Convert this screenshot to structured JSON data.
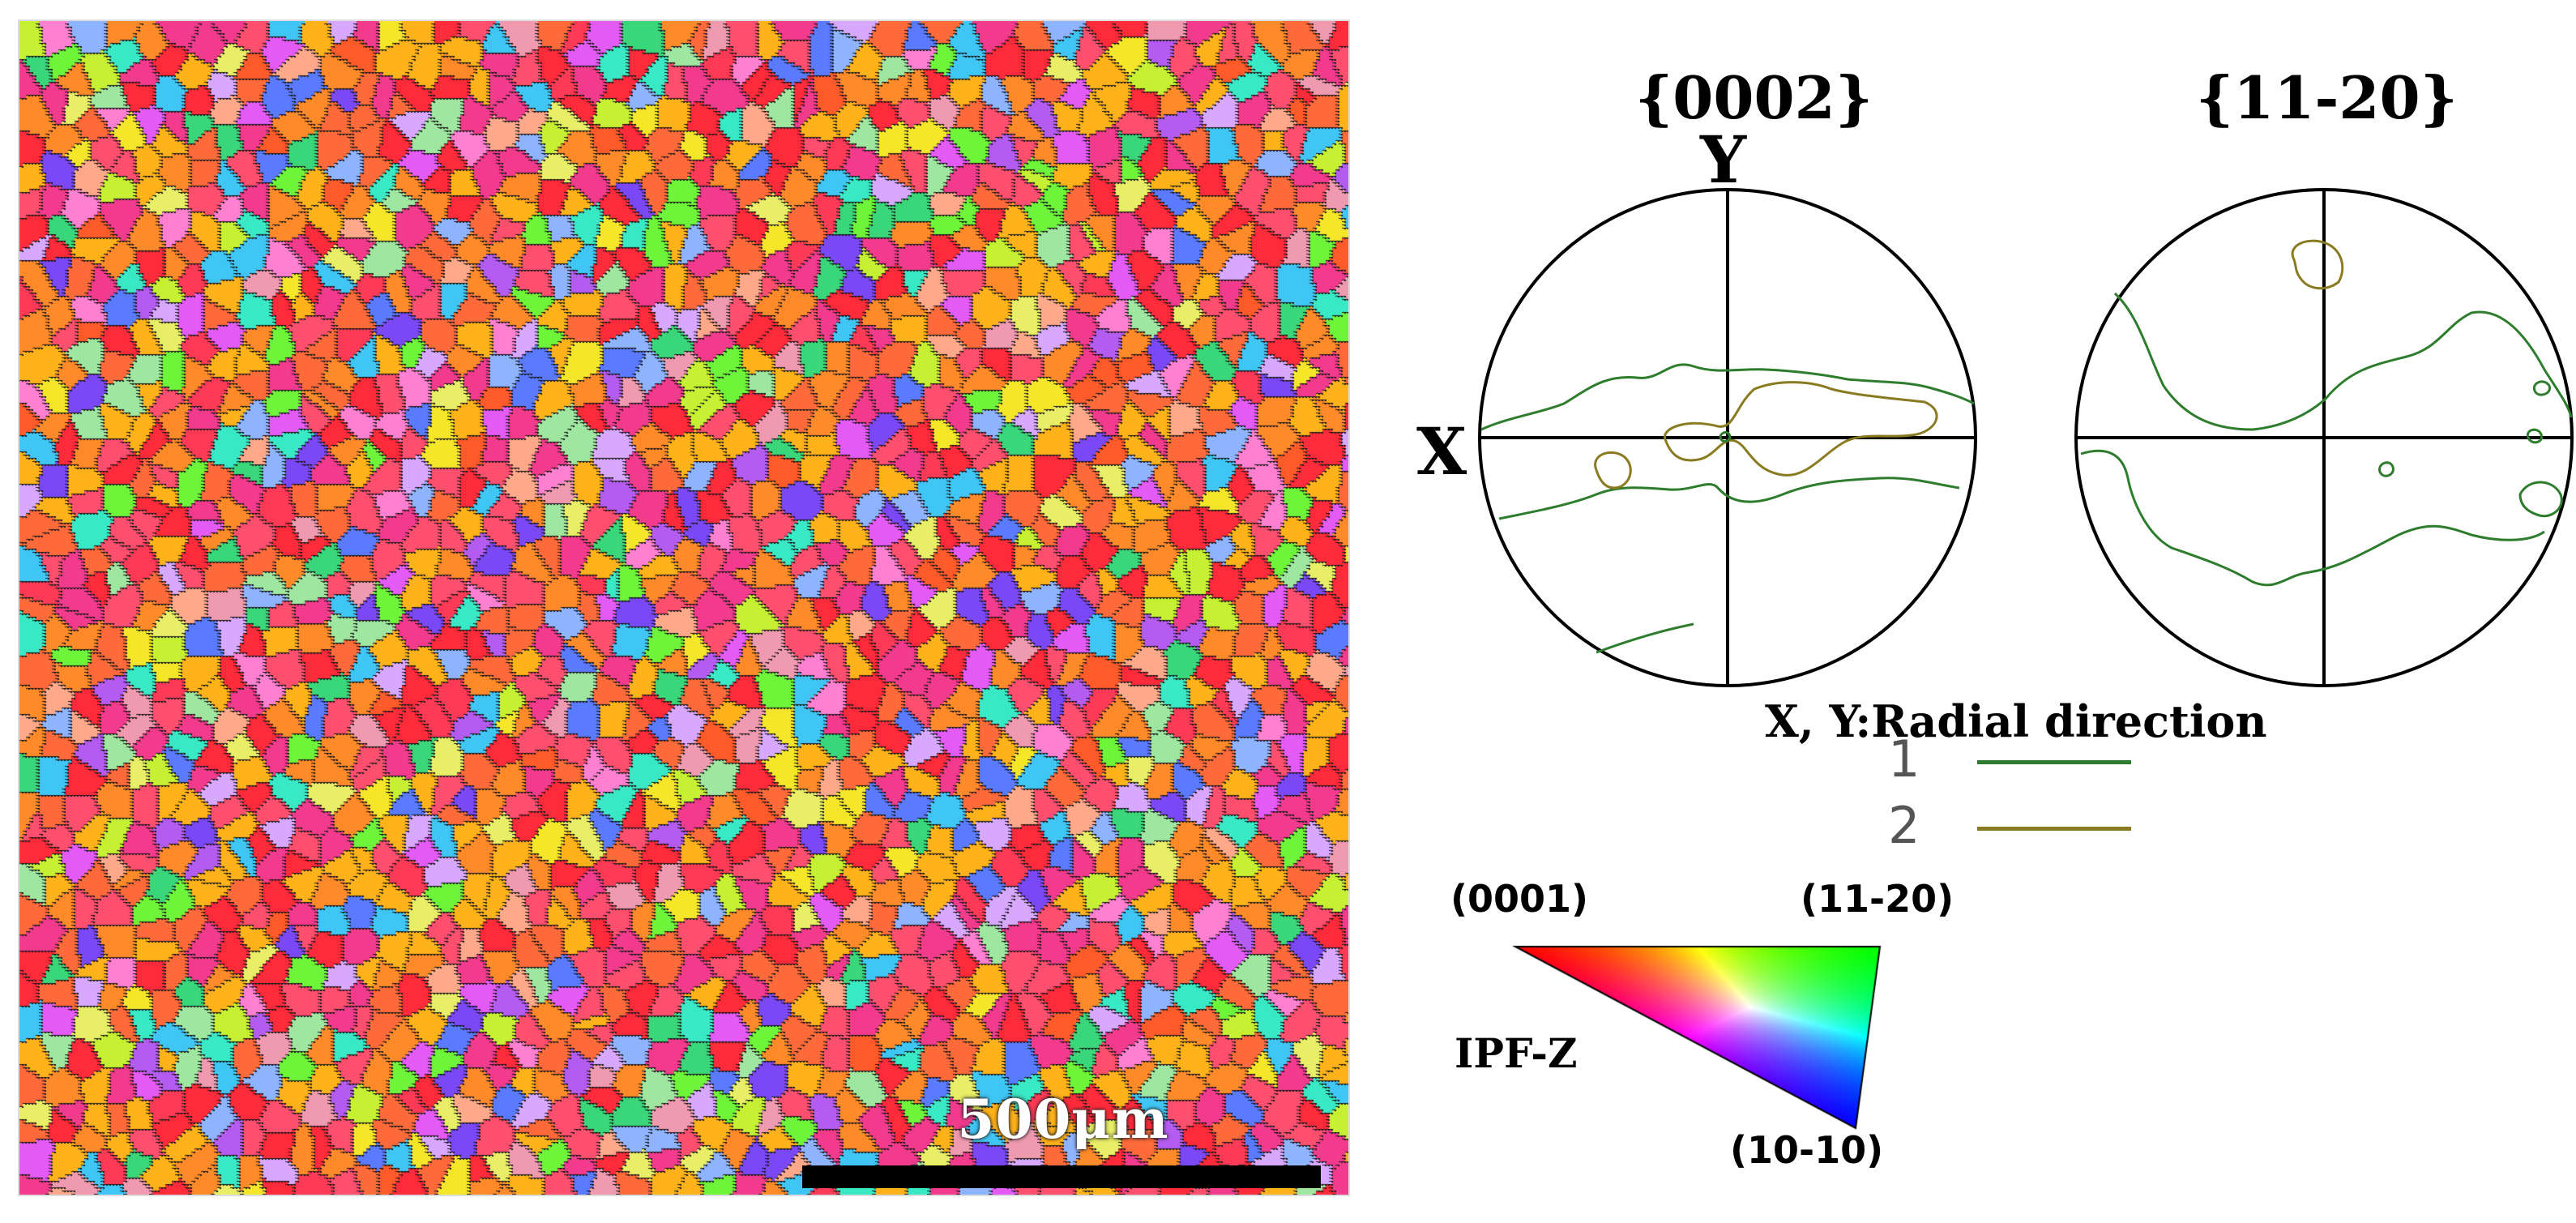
{
  "map": {
    "scale_label": "500μm"
  },
  "pole_figures": [
    {
      "title": "{0002}",
      "axis_y": "Y",
      "axis_x": "X"
    },
    {
      "title": "{11-20}"
    }
  ],
  "legend": {
    "caption": "X, Y:Radial direction",
    "entries": [
      {
        "label": "1",
        "color": "#2e7d2e"
      },
      {
        "label": "2",
        "color": "#8a7a20"
      }
    ]
  },
  "ipf_key": {
    "corner_0001": "(0001)",
    "corner_11_20": "(11-20)",
    "corner_10_10": "(10-10)",
    "name": "IPF-Z",
    "colors": {
      "0001": "#ff0000",
      "11-20": "#00ff00",
      "10-10": "#0000ff"
    }
  },
  "colors": {
    "grain_boundary": "#1a1a1a",
    "pole_outline": "#000000",
    "contour_1": "#2e7d2e",
    "contour_2": "#8a7a20"
  }
}
